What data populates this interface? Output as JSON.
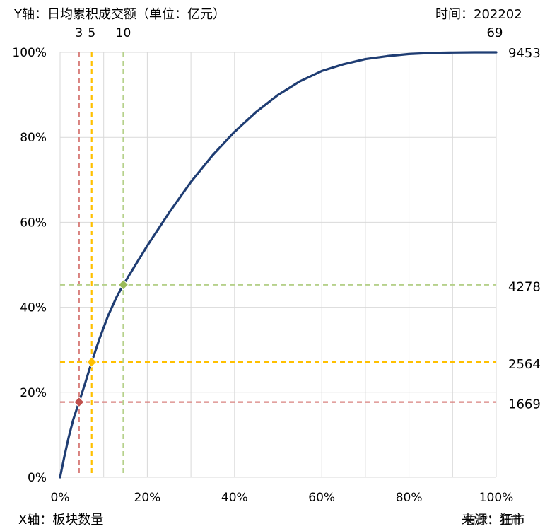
{
  "header": {
    "y_axis_label": "Y轴：日均累积成交额（单位：亿元）",
    "time_label": "时间：202202",
    "time_sub": "69"
  },
  "footer": {
    "x_axis_label": "X轴：板块数量",
    "source_label": "来源：狂市",
    "watermark": "雪球：狂市"
  },
  "chart_data": {
    "type": "line",
    "title": "",
    "xlabel": "X轴：板块数量",
    "ylabel": "Y轴：日均累积成交额（单位：亿元）",
    "xlim": [
      0,
      100
    ],
    "ylim": [
      0,
      100
    ],
    "grid": true,
    "x_ticks": [
      0,
      20,
      40,
      60,
      80,
      100
    ],
    "x_tick_labels": [
      "0%",
      "20%",
      "40%",
      "60%",
      "80%",
      "100%"
    ],
    "y_ticks": [
      0,
      20,
      40,
      60,
      80,
      100
    ],
    "y_tick_labels": [
      "0%",
      "20%",
      "40%",
      "60%",
      "80%",
      "100%"
    ],
    "series": [
      {
        "color": "#1f3d73",
        "x": [
          0,
          1,
          2,
          3,
          4.35,
          5.5,
          7.25,
          9,
          11,
          13,
          14.5,
          17,
          20,
          25,
          30,
          35,
          40,
          45,
          50,
          55,
          60,
          65,
          70,
          75,
          80,
          85,
          90,
          95,
          100
        ],
        "y": [
          0,
          5,
          9.5,
          13.5,
          17.7,
          21.3,
          27.1,
          32.5,
          38,
          42.5,
          45.3,
          49.5,
          54.5,
          62.3,
          69.5,
          75.8,
          81.3,
          86,
          90,
          93.2,
          95.6,
          97.2,
          98.4,
          99.1,
          99.6,
          99.85,
          99.95,
          100,
          100
        ]
      }
    ],
    "markers": [
      {
        "x": 4.35,
        "y": 17.7,
        "color": "#c0504d",
        "line_color": "#d9827f",
        "top_label": "3",
        "right_label": "1669"
      },
      {
        "x": 7.25,
        "y": 27.1,
        "color": "#ffc000",
        "line_color": "#ffc000",
        "top_label": "5",
        "right_label": "2564"
      },
      {
        "x": 14.5,
        "y": 45.3,
        "color": "#9bbb59",
        "line_color": "#b6d18b",
        "top_label": "10",
        "right_label": "4278"
      }
    ],
    "end_label": "9453"
  }
}
